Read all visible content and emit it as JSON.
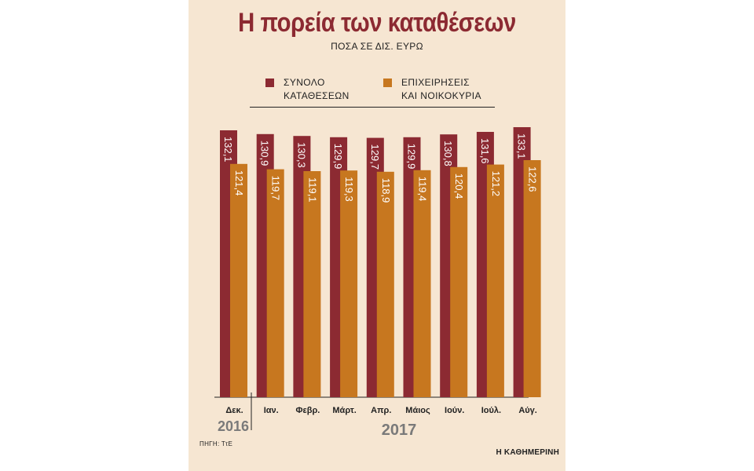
{
  "chart_data": {
    "type": "bar",
    "title": "Η πορεία των καταθέσεων",
    "subtitle": "ΠΟΣΑ ΣΕ ΔΙΣ. ΕΥΡΩ",
    "categories": [
      "Δεκ.",
      "Ιαν.",
      "Φεβρ.",
      "Μάρτ.",
      "Απρ.",
      "Μάιος",
      "Ιούν.",
      "Ιούλ.",
      "Αύγ."
    ],
    "year_labels": [
      "2016",
      "2017"
    ],
    "series": [
      {
        "name_lines": [
          "ΣΥΝΟΛΟ",
          "ΚΑΤΑΘΕΣΕΩΝ"
        ],
        "color": "#8c2a32",
        "values": [
          132.1,
          130.9,
          130.3,
          129.9,
          129.7,
          129.9,
          130.8,
          131.6,
          133.1
        ],
        "labels": [
          "132,1",
          "130,9",
          "130,3",
          "129,9",
          "129,7",
          "129,9",
          "130,8",
          "131,6",
          "133,1"
        ]
      },
      {
        "name_lines": [
          "ΕΠΙΧΕΙΡΗΣΕΙΣ",
          "ΚΑΙ ΝΟΙΚΟΚΥΡΙΑ"
        ],
        "color": "#c7771f",
        "values": [
          121.4,
          119.7,
          119.1,
          119.3,
          118.9,
          119.4,
          120.4,
          121.2,
          122.6
        ],
        "labels": [
          "121,4",
          "119,7",
          "119,1",
          "119,3",
          "118,9",
          "119,4",
          "120,4",
          "121,2",
          "122,6"
        ]
      }
    ],
    "legend_position": "top",
    "grid": false,
    "source": "ΠΗΓΗ: ΤτΕ",
    "publisher": "Η ΚΑΘΗΜΕΡΙΝΗ"
  }
}
